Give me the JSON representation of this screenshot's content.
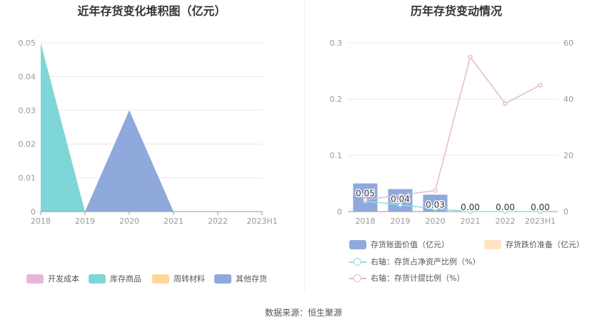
{
  "source_label": "数据来源：恒生聚源",
  "chart_data": [
    {
      "type": "area",
      "title": "近年存货变化堆积图（亿元）",
      "categories": [
        "2018",
        "2019",
        "2020",
        "2021",
        "2022",
        "2023H1"
      ],
      "yticks": [
        "0",
        "0.01",
        "0.02",
        "0.03",
        "0.04",
        "0.05"
      ],
      "ylim": [
        0,
        0.05
      ],
      "series": [
        {
          "name": "开发成本",
          "color": "#e6b8d8",
          "values": [
            0,
            0,
            0,
            0,
            0,
            0
          ]
        },
        {
          "name": "库存商品",
          "color": "#7fd6d6",
          "values": [
            0.05,
            0,
            0,
            0,
            0,
            0
          ]
        },
        {
          "name": "周转材料",
          "color": "#ffd899",
          "values": [
            0,
            0,
            0,
            0,
            0,
            0
          ]
        },
        {
          "name": "其他存货",
          "color": "#8fa9dd",
          "values": [
            0,
            0,
            0.03,
            0,
            0,
            0
          ]
        }
      ],
      "legend_position": "bottom",
      "grid": true
    },
    {
      "type": "bar",
      "title": "历年存货变动情况",
      "categories": [
        "2018",
        "2019",
        "2020",
        "2021",
        "2022",
        "2023H1"
      ],
      "yticks_left": [
        "0",
        "0.1",
        "0.2",
        "0.3"
      ],
      "ylim_left": [
        0,
        0.3
      ],
      "yticks_right": [
        "0",
        "20",
        "40",
        "60"
      ],
      "ylim_right": [
        0,
        60
      ],
      "bar_series": [
        {
          "name": "存货账面价值（亿元）",
          "color": "#8fa9dd",
          "values": [
            0.05,
            0.04,
            0.03,
            0,
            0,
            0
          ],
          "labels": [
            "0.05",
            "0.04",
            "0.03",
            "0.00",
            "0.00",
            "0.00"
          ]
        },
        {
          "name": "存货跌价准备（亿元）",
          "color": "#ffe4bf",
          "values": [
            0,
            0,
            0,
            0,
            0,
            0
          ]
        }
      ],
      "line_series": [
        {
          "name": "右轴：存货占净资产比例（%）",
          "color": "#8fdede",
          "values": [
            3.7,
            2.4,
            1.0,
            0,
            0,
            0
          ]
        },
        {
          "name": "右轴：存货计提比例（%）",
          "color": "#e6b8d8",
          "values": [
            4.2,
            5.8,
            7.5,
            54.9,
            38.4,
            44.9
          ]
        }
      ],
      "legend_position": "bottom",
      "grid": true
    }
  ]
}
